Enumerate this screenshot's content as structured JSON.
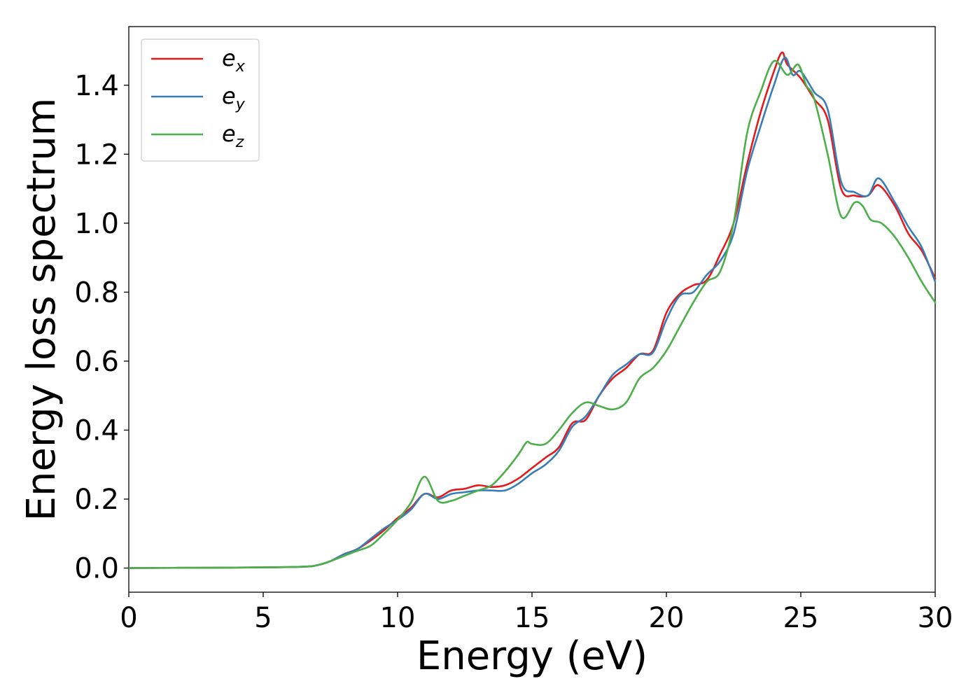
{
  "chart_data": {
    "type": "line",
    "title": "",
    "xlabel": "Energy (eV)",
    "ylabel": "Energy loss spectrum",
    "xlim": [
      0,
      30
    ],
    "ylim": [
      -0.07,
      1.57
    ],
    "xticks": [
      0,
      5,
      10,
      15,
      20,
      25,
      30
    ],
    "xtick_labels": [
      "0",
      "5",
      "10",
      "15",
      "20",
      "25",
      "30"
    ],
    "yticks": [
      0.0,
      0.2,
      0.4,
      0.6,
      0.8,
      1.0,
      1.2,
      1.4
    ],
    "ytick_labels": [
      "0.0",
      "0.2",
      "0.4",
      "0.6",
      "0.8",
      "1.0",
      "1.2",
      "1.4"
    ],
    "grid": false,
    "legend_position": "top-left",
    "series": [
      {
        "name": "e_x",
        "label_base": "e",
        "label_sub": "x",
        "color": "#e41a1c",
        "x": [
          0,
          3,
          5,
          6.5,
          7,
          7.5,
          8,
          8.5,
          9,
          9.5,
          10,
          10.5,
          11,
          11.5,
          12,
          12.5,
          13,
          13.5,
          14,
          14.5,
          15,
          15.5,
          16,
          16.5,
          17,
          17.5,
          18,
          18.5,
          19,
          19.5,
          20,
          20.5,
          21,
          21.5,
          22,
          22.5,
          23,
          23.5,
          24,
          24.3,
          24.5,
          25,
          25.5,
          26,
          26.5,
          27,
          27.5,
          27.9,
          28.5,
          29,
          29.5,
          30
        ],
        "y": [
          0,
          0.001,
          0.002,
          0.004,
          0.008,
          0.02,
          0.04,
          0.055,
          0.08,
          0.11,
          0.145,
          0.175,
          0.215,
          0.205,
          0.225,
          0.23,
          0.24,
          0.235,
          0.24,
          0.26,
          0.29,
          0.32,
          0.35,
          0.42,
          0.43,
          0.5,
          0.55,
          0.58,
          0.62,
          0.63,
          0.74,
          0.795,
          0.82,
          0.835,
          0.91,
          1.0,
          1.17,
          1.32,
          1.44,
          1.495,
          1.46,
          1.42,
          1.36,
          1.3,
          1.1,
          1.08,
          1.08,
          1.11,
          1.05,
          0.97,
          0.92,
          0.84
        ]
      },
      {
        "name": "e_y",
        "label_base": "e",
        "label_sub": "y",
        "color": "#377eb8",
        "x": [
          0,
          3,
          5,
          6.5,
          7,
          7.5,
          8,
          8.5,
          9,
          9.5,
          10,
          10.5,
          11,
          11.5,
          12,
          12.5,
          13,
          13.5,
          14,
          14.5,
          15,
          15.5,
          16,
          16.5,
          17,
          17.5,
          18,
          18.5,
          19,
          19.5,
          20,
          20.5,
          21,
          21.5,
          22,
          22.5,
          23,
          23.5,
          24,
          24.4,
          24.7,
          25,
          25.5,
          26,
          26.5,
          27,
          27.5,
          27.9,
          28.5,
          29,
          29.5,
          30
        ],
        "y": [
          0,
          0.001,
          0.002,
          0.004,
          0.008,
          0.02,
          0.04,
          0.055,
          0.085,
          0.115,
          0.14,
          0.17,
          0.215,
          0.2,
          0.215,
          0.22,
          0.225,
          0.225,
          0.225,
          0.245,
          0.275,
          0.3,
          0.34,
          0.41,
          0.44,
          0.5,
          0.56,
          0.59,
          0.62,
          0.625,
          0.72,
          0.79,
          0.8,
          0.85,
          0.89,
          0.97,
          1.15,
          1.28,
          1.4,
          1.48,
          1.43,
          1.44,
          1.38,
          1.33,
          1.12,
          1.09,
          1.08,
          1.13,
          1.06,
          0.99,
          0.93,
          0.83
        ]
      },
      {
        "name": "e_z",
        "label_base": "e",
        "label_sub": "z",
        "color": "#4daf4a",
        "x": [
          0,
          3,
          5,
          6.5,
          7,
          7.5,
          8,
          8.5,
          9,
          9.5,
          10,
          10.5,
          11,
          11.5,
          12,
          12.5,
          13,
          13.5,
          14,
          14.5,
          14.8,
          15,
          15.5,
          16,
          16.5,
          17,
          17.5,
          18,
          18.5,
          19,
          19.5,
          20,
          20.5,
          21,
          21.5,
          22,
          22.5,
          23,
          23.5,
          24,
          24.5,
          24.9,
          25.2,
          25.5,
          26,
          26.5,
          27,
          27.3,
          27.6,
          28,
          28.5,
          29,
          29.5,
          30
        ],
        "y": [
          0,
          0.001,
          0.002,
          0.004,
          0.008,
          0.02,
          0.035,
          0.05,
          0.065,
          0.1,
          0.14,
          0.19,
          0.265,
          0.195,
          0.195,
          0.21,
          0.225,
          0.24,
          0.28,
          0.33,
          0.365,
          0.36,
          0.36,
          0.4,
          0.45,
          0.48,
          0.47,
          0.46,
          0.48,
          0.55,
          0.58,
          0.63,
          0.7,
          0.77,
          0.83,
          0.86,
          1.0,
          1.26,
          1.38,
          1.47,
          1.43,
          1.46,
          1.4,
          1.36,
          1.2,
          1.02,
          1.06,
          1.05,
          1.01,
          1.0,
          0.96,
          0.9,
          0.83,
          0.77
        ]
      }
    ]
  }
}
